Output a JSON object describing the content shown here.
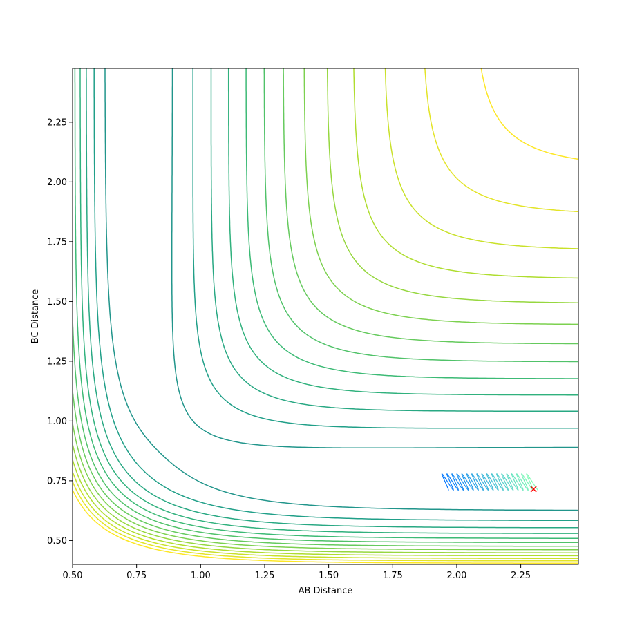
{
  "chart_data": {
    "type": "contour",
    "title": "",
    "xlabel": "AB Distance",
    "ylabel": "BC Distance",
    "xlim": [
      0.5,
      2.475
    ],
    "ylim": [
      0.4,
      2.475
    ],
    "xticks": [
      0.5,
      0.75,
      1.0,
      1.25,
      1.5,
      1.75,
      2.0,
      2.25
    ],
    "xtick_labels": [
      "0.50",
      "0.75",
      "1.00",
      "1.25",
      "1.50",
      "1.75",
      "2.00",
      "2.25"
    ],
    "yticks": [
      0.5,
      0.75,
      1.0,
      1.25,
      1.5,
      1.75,
      2.0,
      2.25
    ],
    "ytick_labels": [
      "0.50",
      "0.75",
      "1.00",
      "1.25",
      "1.50",
      "1.75",
      "2.00",
      "2.25"
    ],
    "grid": false,
    "colormap": "viridis",
    "contour_levels": {
      "count": 26,
      "color_low": "#440154",
      "color_high": "#fde725"
    },
    "trajectory": {
      "start": [
        2.3,
        0.715
      ],
      "end": [
        1.95,
        0.75
      ],
      "oscillation_bc_range": [
        0.71,
        0.78
      ],
      "color_start": "#7fffb0",
      "color_end": "#0074ff"
    },
    "marker": {
      "x": 2.3,
      "y": 0.715,
      "symbol": "x",
      "color": "#ff0000"
    }
  }
}
